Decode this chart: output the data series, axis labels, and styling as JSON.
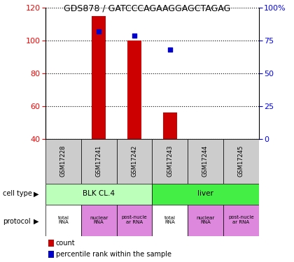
{
  "title": "GDS878 / GATCCCAGAAGGAGCTAGAG",
  "samples": [
    "GSM17228",
    "GSM17241",
    "GSM17242",
    "GSM17243",
    "GSM17244",
    "GSM17245"
  ],
  "counts": [
    0,
    115,
    100,
    56,
    0,
    0
  ],
  "percentiles": [
    null,
    82,
    79,
    68,
    null,
    null
  ],
  "ylim_left": [
    40,
    120
  ],
  "ylim_right": [
    0,
    100
  ],
  "yticks_left": [
    40,
    60,
    80,
    100,
    120
  ],
  "yticks_right": [
    0,
    25,
    50,
    75,
    100
  ],
  "bar_color": "#cc0000",
  "dot_color": "#0000cc",
  "cell_type_row": [
    {
      "label": "BLK CL.4",
      "span": 3,
      "color": "#bbffbb"
    },
    {
      "label": "liver",
      "span": 3,
      "color": "#44ee44"
    }
  ],
  "protocol_labels": [
    "total\nRNA",
    "nuclear\nRNA",
    "post-nucle\nar RNA",
    "total\nRNA",
    "nuclear\nRNA",
    "post-nucle\nar RNA"
  ],
  "protocol_colors": [
    "#ffffff",
    "#dd88dd",
    "#dd88dd",
    "#ffffff",
    "#dd88dd",
    "#dd88dd"
  ],
  "sample_box_color": "#cccccc",
  "legend_count_color": "#cc0000",
  "legend_pct_color": "#0000cc",
  "title_fontsize": 9,
  "axis_fontsize": 8,
  "label_fontsize": 7,
  "small_fontsize": 6
}
